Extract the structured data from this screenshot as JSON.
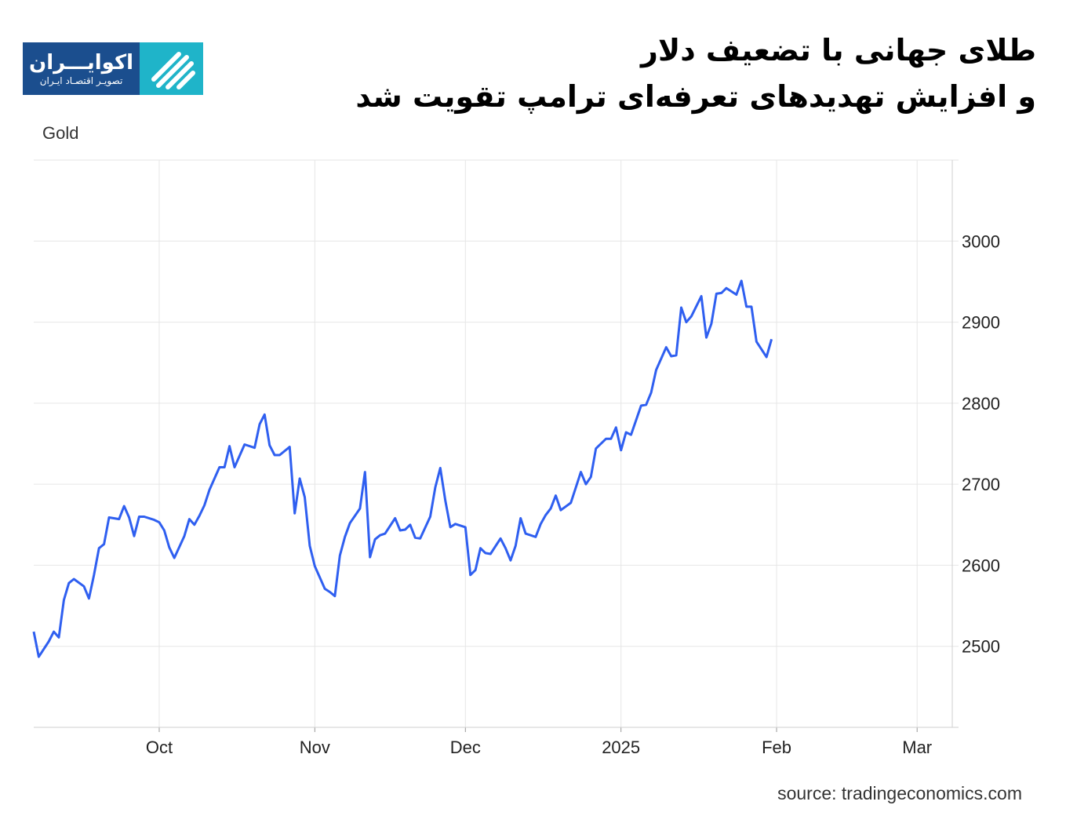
{
  "header": {
    "title_line1": "طلای جهانی با تضعیف دلار",
    "title_line2": "و افزایش تهدیدهای تعرفه‌ای ترامپ تقویت شد"
  },
  "logo": {
    "brand": "اکوایـــران",
    "tagline": "تصویـر اقتصـاد ایـران",
    "icon": "stripes-logo-icon",
    "colors": {
      "brand_bg": "#1b4e8e",
      "icon_bg": "#1fb4c9"
    }
  },
  "source": "source: tradingeconomics.com",
  "chart_data": {
    "type": "line",
    "series_label": "Gold",
    "x_tick_labels": [
      "Oct",
      "Nov",
      "Dec",
      "2025",
      "Feb",
      "Mar"
    ],
    "x_tick_dates": [
      "2024-10-01",
      "2024-11-01",
      "2024-12-01",
      "2025-01-01",
      "2025-02-01",
      "2025-03-01"
    ],
    "y_ticks": [
      2500,
      2600,
      2700,
      2800,
      2900,
      3000
    ],
    "ylim": [
      2400,
      3100
    ],
    "xlim": [
      "2024-09-06",
      "2025-03-08"
    ],
    "grid": true,
    "y_axis_side": "right",
    "line_color": "#2f5ff0",
    "series": [
      {
        "values": [
          [
            "2024-09-06",
            2518
          ],
          [
            "2024-09-07",
            2487
          ],
          [
            "2024-09-09",
            2506
          ],
          [
            "2024-09-10",
            2518
          ],
          [
            "2024-09-11",
            2511
          ],
          [
            "2024-09-12",
            2557
          ],
          [
            "2024-09-13",
            2578
          ],
          [
            "2024-09-14",
            2583
          ],
          [
            "2024-09-16",
            2574
          ],
          [
            "2024-09-17",
            2559
          ],
          [
            "2024-09-18",
            2588
          ],
          [
            "2024-09-19",
            2621
          ],
          [
            "2024-09-20",
            2626
          ],
          [
            "2024-09-21",
            2659
          ],
          [
            "2024-09-23",
            2657
          ],
          [
            "2024-09-24",
            2673
          ],
          [
            "2024-09-25",
            2659
          ],
          [
            "2024-09-26",
            2636
          ],
          [
            "2024-09-27",
            2660
          ],
          [
            "2024-09-28",
            2660
          ],
          [
            "2024-09-30",
            2656
          ],
          [
            "2024-10-01",
            2653
          ],
          [
            "2024-10-02",
            2643
          ],
          [
            "2024-10-03",
            2622
          ],
          [
            "2024-10-04",
            2609
          ],
          [
            "2024-10-06",
            2636
          ],
          [
            "2024-10-07",
            2657
          ],
          [
            "2024-10-08",
            2650
          ],
          [
            "2024-10-09",
            2661
          ],
          [
            "2024-10-10",
            2674
          ],
          [
            "2024-10-11",
            2693
          ],
          [
            "2024-10-13",
            2721
          ],
          [
            "2024-10-14",
            2721
          ],
          [
            "2024-10-15",
            2747
          ],
          [
            "2024-10-16",
            2721
          ],
          [
            "2024-10-17",
            2735
          ],
          [
            "2024-10-18",
            2749
          ],
          [
            "2024-10-20",
            2745
          ],
          [
            "2024-10-21",
            2774
          ],
          [
            "2024-10-22",
            2786
          ],
          [
            "2024-10-23",
            2748
          ],
          [
            "2024-10-24",
            2736
          ],
          [
            "2024-10-25",
            2736
          ],
          [
            "2024-10-27",
            2746
          ],
          [
            "2024-10-28",
            2664
          ],
          [
            "2024-10-29",
            2707
          ],
          [
            "2024-10-30",
            2684
          ],
          [
            "2024-10-31",
            2624
          ],
          [
            "2024-11-01",
            2599
          ],
          [
            "2024-11-03",
            2571
          ],
          [
            "2024-11-04",
            2567
          ],
          [
            "2024-11-05",
            2562
          ],
          [
            "2024-11-06",
            2612
          ],
          [
            "2024-11-07",
            2635
          ],
          [
            "2024-11-08",
            2652
          ],
          [
            "2024-11-10",
            2670
          ],
          [
            "2024-11-11",
            2715
          ],
          [
            "2024-11-12",
            2610
          ],
          [
            "2024-11-13",
            2632
          ],
          [
            "2024-11-14",
            2637
          ],
          [
            "2024-11-15",
            2639
          ],
          [
            "2024-11-17",
            2658
          ],
          [
            "2024-11-18",
            2643
          ],
          [
            "2024-11-19",
            2644
          ],
          [
            "2024-11-20",
            2650
          ],
          [
            "2024-11-21",
            2634
          ],
          [
            "2024-11-22",
            2633
          ],
          [
            "2024-11-24",
            2660
          ],
          [
            "2024-11-25",
            2696
          ],
          [
            "2024-11-26",
            2720
          ],
          [
            "2024-11-27",
            2680
          ],
          [
            "2024-11-28",
            2647
          ],
          [
            "2024-11-29",
            2651
          ],
          [
            "2024-12-01",
            2647
          ],
          [
            "2024-12-02",
            2588
          ],
          [
            "2024-12-03",
            2594
          ],
          [
            "2024-12-04",
            2621
          ],
          [
            "2024-12-05",
            2615
          ],
          [
            "2024-12-06",
            2614
          ],
          [
            "2024-12-08",
            2633
          ],
          [
            "2024-12-09",
            2621
          ],
          [
            "2024-12-10",
            2606
          ],
          [
            "2024-12-11",
            2624
          ],
          [
            "2024-12-12",
            2658
          ],
          [
            "2024-12-13",
            2639
          ],
          [
            "2024-12-15",
            2635
          ],
          [
            "2024-12-16",
            2651
          ],
          [
            "2024-12-17",
            2662
          ],
          [
            "2024-12-18",
            2670
          ],
          [
            "2024-12-19",
            2686
          ],
          [
            "2024-12-20",
            2668
          ],
          [
            "2024-12-22",
            2677
          ],
          [
            "2024-12-23",
            2696
          ],
          [
            "2024-12-24",
            2715
          ],
          [
            "2024-12-25",
            2700
          ],
          [
            "2024-12-26",
            2709
          ],
          [
            "2024-12-27",
            2744
          ],
          [
            "2024-12-29",
            2756
          ],
          [
            "2024-12-30",
            2756
          ],
          [
            "2024-12-31",
            2770
          ],
          [
            "2025-01-01",
            2742
          ],
          [
            "2025-01-02",
            2764
          ],
          [
            "2025-01-03",
            2761
          ],
          [
            "2025-01-05",
            2797
          ],
          [
            "2025-01-06",
            2798
          ],
          [
            "2025-01-07",
            2813
          ],
          [
            "2025-01-08",
            2841
          ],
          [
            "2025-01-10",
            2869
          ],
          [
            "2025-01-11",
            2858
          ],
          [
            "2025-01-12",
            2859
          ],
          [
            "2025-01-13",
            2918
          ],
          [
            "2025-01-14",
            2900
          ],
          [
            "2025-01-15",
            2907
          ],
          [
            "2025-01-17",
            2932
          ],
          [
            "2025-01-18",
            2881
          ],
          [
            "2025-01-19",
            2898
          ],
          [
            "2025-01-20",
            2935
          ],
          [
            "2025-01-21",
            2936
          ],
          [
            "2025-01-22",
            2942
          ],
          [
            "2025-01-24",
            2934
          ],
          [
            "2025-01-25",
            2951
          ],
          [
            "2025-01-26",
            2919
          ],
          [
            "2025-01-27",
            2919
          ],
          [
            "2025-01-28",
            2876
          ],
          [
            "2025-01-30",
            2857
          ],
          [
            "2025-01-31",
            2879
          ]
        ]
      }
    ]
  }
}
